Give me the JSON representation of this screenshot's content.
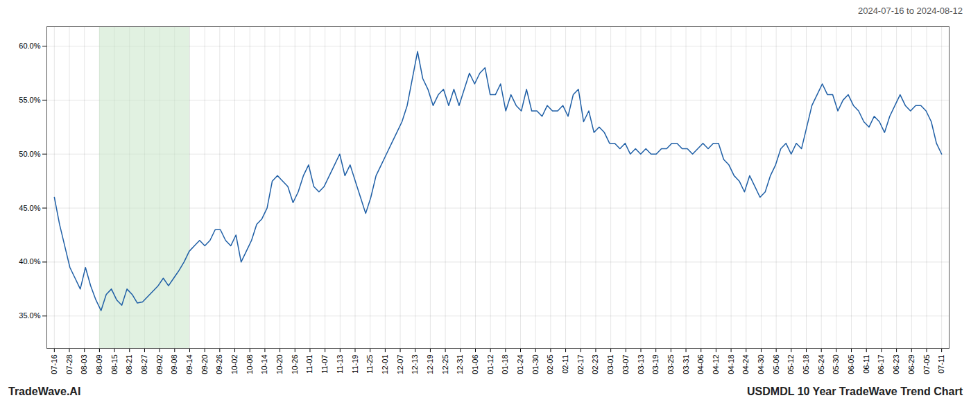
{
  "chart_data": {
    "type": "line",
    "title": "USDMDL 10 Year TradeWave Trend Chart",
    "subtitle": "2024-07-16 to 2024-08-12",
    "caption": "TradeWave.AI",
    "color": "#1f5fa6",
    "grid": true,
    "highlight_span": [
      3,
      9
    ],
    "highlight_color": "#c8e6c9",
    "xlim": [
      -0.5,
      59.5
    ],
    "xticks": [
      {
        "value": 0,
        "label": "07-16"
      },
      {
        "value": 1,
        "label": "07-28"
      },
      {
        "value": 2,
        "label": "08-03"
      },
      {
        "value": 3,
        "label": "08-09"
      },
      {
        "value": 4,
        "label": "08-15"
      },
      {
        "value": 5,
        "label": "08-21"
      },
      {
        "value": 6,
        "label": "08-27"
      },
      {
        "value": 7,
        "label": "09-02"
      },
      {
        "value": 8,
        "label": "09-08"
      },
      {
        "value": 9,
        "label": "09-14"
      },
      {
        "value": 10,
        "label": "09-20"
      },
      {
        "value": 11,
        "label": "09-26"
      },
      {
        "value": 12,
        "label": "10-02"
      },
      {
        "value": 13,
        "label": "10-08"
      },
      {
        "value": 14,
        "label": "10-14"
      },
      {
        "value": 15,
        "label": "10-20"
      },
      {
        "value": 16,
        "label": "10-26"
      },
      {
        "value": 17,
        "label": "11-01"
      },
      {
        "value": 18,
        "label": "11-07"
      },
      {
        "value": 19,
        "label": "11-13"
      },
      {
        "value": 20,
        "label": "11-19"
      },
      {
        "value": 21,
        "label": "11-25"
      },
      {
        "value": 22,
        "label": "12-01"
      },
      {
        "value": 23,
        "label": "12-07"
      },
      {
        "value": 24,
        "label": "12-13"
      },
      {
        "value": 25,
        "label": "12-19"
      },
      {
        "value": 26,
        "label": "12-25"
      },
      {
        "value": 27,
        "label": "12-31"
      },
      {
        "value": 28,
        "label": "01-06"
      },
      {
        "value": 29,
        "label": "01-12"
      },
      {
        "value": 30,
        "label": "01-18"
      },
      {
        "value": 31,
        "label": "01-24"
      },
      {
        "value": 32,
        "label": "01-30"
      },
      {
        "value": 33,
        "label": "02-05"
      },
      {
        "value": 34,
        "label": "02-11"
      },
      {
        "value": 35,
        "label": "02-17"
      },
      {
        "value": 36,
        "label": "02-23"
      },
      {
        "value": 37,
        "label": "03-01"
      },
      {
        "value": 38,
        "label": "03-07"
      },
      {
        "value": 39,
        "label": "03-13"
      },
      {
        "value": 40,
        "label": "03-19"
      },
      {
        "value": 41,
        "label": "03-25"
      },
      {
        "value": 42,
        "label": "03-31"
      },
      {
        "value": 43,
        "label": "04-06"
      },
      {
        "value": 44,
        "label": "04-12"
      },
      {
        "value": 45,
        "label": "04-18"
      },
      {
        "value": 46,
        "label": "04-24"
      },
      {
        "value": 47,
        "label": "04-30"
      },
      {
        "value": 48,
        "label": "05-06"
      },
      {
        "value": 49,
        "label": "05-12"
      },
      {
        "value": 50,
        "label": "05-18"
      },
      {
        "value": 51,
        "label": "05-24"
      },
      {
        "value": 52,
        "label": "05-30"
      },
      {
        "value": 53,
        "label": "06-05"
      },
      {
        "value": 54,
        "label": "06-11"
      },
      {
        "value": 55,
        "label": "06-17"
      },
      {
        "value": 56,
        "label": "06-23"
      },
      {
        "value": 57,
        "label": "06-29"
      },
      {
        "value": 58,
        "label": "07-05"
      },
      {
        "value": 59,
        "label": "07-11"
      }
    ],
    "ylim": [
      0.32,
      0.618
    ],
    "yticks": [
      {
        "value": 0.35,
        "label": "35.0%"
      },
      {
        "value": 0.4,
        "label": "40.0%"
      },
      {
        "value": 0.45,
        "label": "45.0%"
      },
      {
        "value": 0.5,
        "label": "50.0%"
      },
      {
        "value": 0.55,
        "label": "55.0%"
      },
      {
        "value": 0.6,
        "label": "60.0%"
      }
    ],
    "values": [
      0.46,
      0.435,
      0.415,
      0.395,
      0.385,
      0.375,
      0.395,
      0.378,
      0.365,
      0.355,
      0.37,
      0.375,
      0.365,
      0.36,
      0.375,
      0.37,
      0.362,
      0.363,
      0.368,
      0.373,
      0.378,
      0.385,
      0.378,
      0.385,
      0.392,
      0.4,
      0.41,
      0.415,
      0.42,
      0.415,
      0.42,
      0.43,
      0.43,
      0.42,
      0.415,
      0.425,
      0.4,
      0.41,
      0.42,
      0.435,
      0.44,
      0.45,
      0.475,
      0.48,
      0.475,
      0.47,
      0.455,
      0.465,
      0.48,
      0.49,
      0.47,
      0.465,
      0.47,
      0.48,
      0.49,
      0.5,
      0.48,
      0.49,
      0.475,
      0.46,
      0.445,
      0.46,
      0.48,
      0.49,
      0.5,
      0.51,
      0.52,
      0.53,
      0.545,
      0.57,
      0.595,
      0.57,
      0.56,
      0.545,
      0.555,
      0.56,
      0.545,
      0.56,
      0.545,
      0.56,
      0.575,
      0.565,
      0.575,
      0.58,
      0.555,
      0.555,
      0.565,
      0.54,
      0.555,
      0.545,
      0.54,
      0.56,
      0.54,
      0.54,
      0.535,
      0.545,
      0.54,
      0.54,
      0.545,
      0.535,
      0.555,
      0.56,
      0.53,
      0.54,
      0.52,
      0.525,
      0.52,
      0.51,
      0.51,
      0.505,
      0.51,
      0.5,
      0.505,
      0.5,
      0.505,
      0.5,
      0.5,
      0.505,
      0.505,
      0.51,
      0.51,
      0.505,
      0.505,
      0.5,
      0.505,
      0.51,
      0.505,
      0.51,
      0.51,
      0.495,
      0.49,
      0.48,
      0.475,
      0.465,
      0.48,
      0.47,
      0.46,
      0.465,
      0.48,
      0.49,
      0.505,
      0.51,
      0.5,
      0.51,
      0.505,
      0.525,
      0.545,
      0.555,
      0.565,
      0.555,
      0.555,
      0.54,
      0.55,
      0.555,
      0.545,
      0.54,
      0.53,
      0.525,
      0.535,
      0.53,
      0.52,
      0.535,
      0.545,
      0.555,
      0.545,
      0.54,
      0.545,
      0.545,
      0.54,
      0.53,
      0.51,
      0.5
    ]
  }
}
